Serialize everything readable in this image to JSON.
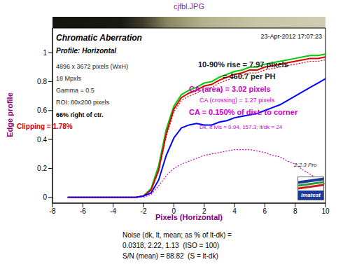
{
  "chart_data": {
    "type": "line",
    "title": "cjfbl.JPG",
    "x_label": "Pixels (Horizontal)",
    "y_label": "Edge profile",
    "date": "23-Apr-2012 17:07:23",
    "logo": "Imatest",
    "annotations": [
      "Chromatic Aberration",
      "Profile: Horizontal",
      "4896 x 3672 pixels (WxH)",
      "18 Mpxls",
      "Gamma = 0.5",
      "ROI: 80x200 pixels",
      "66% right of ctr.",
      "Clipping =  1.78%",
      "10-90% rise = 7.97 pixels",
      "= 460.7 per PH",
      "CA (area) = 3.02 pixels",
      "CA (crossing) = 1.27 pixels",
      "CA = 0.150% of dist. to corner",
      "Dk, lt lvls = 0.94, 157.3;  lt/dk = 24",
      "2.2.3  Pro"
    ],
    "footer": [
      "Noise (dk, lt, mean; as % of lt-dk) =",
      "0.0318, 2.22, 1.13  (ISO = 100)",
      "S/N (mean) = 88.82  (S = lt-dk)"
    ],
    "x": [
      -7,
      -6.5,
      -6,
      -5.5,
      -5,
      -4.5,
      -4,
      -3.5,
      -3,
      -2.5,
      -2,
      -1.5,
      -1,
      -0.5,
      0,
      0.5,
      1,
      1.5,
      2,
      2.5,
      3,
      3.5,
      4,
      4.5,
      5,
      5.5,
      6,
      6.5,
      7,
      7.5,
      8,
      8.5,
      9,
      9.5,
      10
    ],
    "series": [
      {
        "color": "#00cc00",
        "line_style": "solid",
        "values": [
          0,
          0,
          0,
          0,
          0,
          0,
          0,
          0,
          0,
          0,
          0.01,
          0.06,
          0.22,
          0.47,
          0.63,
          0.71,
          0.74,
          0.76,
          0.79,
          0.8,
          0.83,
          0.85,
          0.87,
          0.88,
          0.9,
          0.9,
          0.92,
          0.93,
          0.94,
          0.95,
          0.96,
          0.97,
          0.98,
          0.98,
          0.99
        ]
      },
      {
        "color": "#dd0000",
        "line_style": "solid",
        "values": [
          0,
          0,
          0,
          0,
          0,
          0,
          0,
          0,
          0,
          0,
          0.01,
          0.05,
          0.19,
          0.44,
          0.61,
          0.69,
          0.72,
          0.74,
          0.77,
          0.78,
          0.81,
          0.83,
          0.85,
          0.86,
          0.88,
          0.88,
          0.9,
          0.91,
          0.92,
          0.93,
          0.94,
          0.95,
          0.96,
          0.96,
          0.97
        ]
      },
      {
        "color": "#dd0000",
        "line_style": "dotted",
        "values": [
          0,
          0,
          0,
          0,
          0,
          0,
          0,
          0,
          0,
          0,
          0.01,
          0.05,
          0.18,
          0.42,
          0.59,
          0.67,
          0.7,
          0.72,
          0.75,
          0.76,
          0.79,
          0.81,
          0.83,
          0.84,
          0.86,
          0.86,
          0.88,
          0.89,
          0.9,
          0.91,
          0.92,
          0.93,
          0.94,
          0.94,
          0.95
        ]
      },
      {
        "color": "#0000ff",
        "line_style": "solid",
        "values": [
          0,
          0,
          0,
          0,
          0,
          0,
          0,
          0,
          0,
          0,
          0.01,
          0.03,
          0.12,
          0.29,
          0.41,
          0.48,
          0.5,
          0.51,
          0.5,
          0.5,
          0.52,
          0.53,
          0.55,
          0.56,
          0.57,
          0.58,
          0.6,
          0.62,
          0.64,
          0.67,
          0.7,
          0.73,
          0.76,
          0.79,
          0.82
        ]
      },
      {
        "color": "#cc00cc",
        "line_style": "dotted",
        "values": [
          0,
          0,
          0,
          0,
          0,
          0,
          0,
          0,
          0,
          0,
          0,
          0.02,
          0.08,
          0.15,
          0.2,
          0.23,
          0.25,
          0.27,
          0.29,
          0.3,
          0.31,
          0.32,
          0.33,
          0.33,
          0.33,
          0.32,
          0.31,
          0.29,
          0.28,
          0.25,
          0.23,
          0.19,
          0.16,
          0.12,
          0.09
        ]
      }
    ],
    "xlim": [
      -8,
      10
    ],
    "xticks": [
      -8,
      -6,
      -4,
      -2,
      0,
      2,
      4,
      6,
      8,
      10
    ],
    "ylim": [
      -0.04,
      1.17
    ],
    "yticks": [
      0,
      0.2,
      0.4,
      0.6,
      0.8,
      1
    ],
    "grid": false
  }
}
